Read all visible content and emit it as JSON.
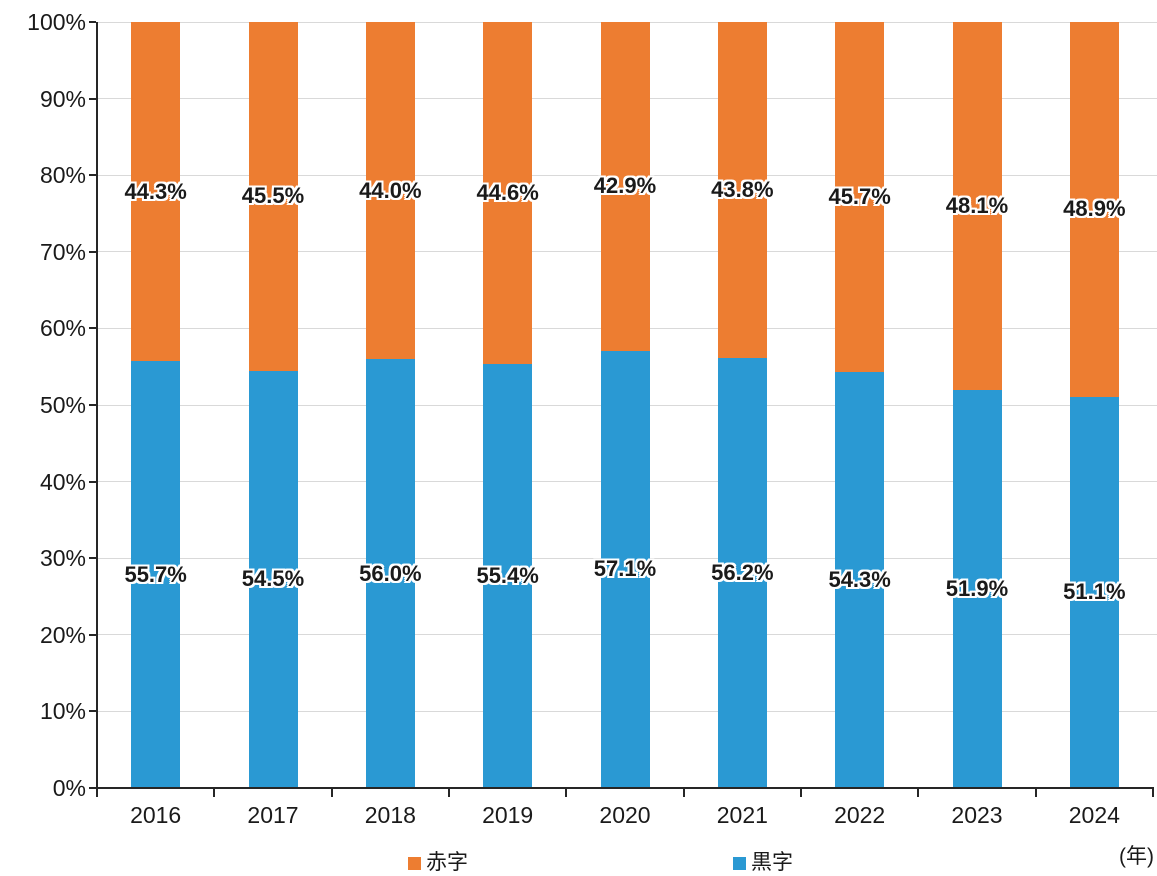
{
  "chart_data": {
    "type": "bar",
    "stacked": true,
    "stacked_100_percent": true,
    "title": "",
    "xlabel": "",
    "ylabel": "",
    "x_axis_unit": "(年)",
    "categories": [
      "2016",
      "2017",
      "2018",
      "2019",
      "2020",
      "2021",
      "2022",
      "2023",
      "2024"
    ],
    "series": [
      {
        "name": "黒字",
        "slug": "surplus",
        "color": "#2a99d3",
        "values": [
          55.7,
          54.5,
          56.0,
          55.4,
          57.1,
          56.2,
          54.3,
          51.9,
          51.1
        ],
        "labels": [
          "55.7%",
          "54.5%",
          "56.0%",
          "55.4%",
          "57.1%",
          "56.2%",
          "54.3%",
          "51.9%",
          "51.1%"
        ]
      },
      {
        "name": "赤字",
        "slug": "deficit",
        "color": "#ed7d31",
        "values": [
          44.3,
          45.5,
          44.0,
          44.6,
          42.9,
          43.8,
          45.7,
          48.1,
          48.9
        ],
        "labels": [
          "44.3%",
          "45.5%",
          "44.0%",
          "44.6%",
          "42.9%",
          "43.8%",
          "45.7%",
          "48.1%",
          "48.9%"
        ]
      }
    ],
    "y_axis": {
      "min": 0,
      "max": 100,
      "step": 10,
      "tick_labels": [
        "0%",
        "10%",
        "20%",
        "30%",
        "40%",
        "50%",
        "60%",
        "70%",
        "80%",
        "90%",
        "100%"
      ]
    },
    "grid": true,
    "legend": {
      "position": "bottom",
      "entries": [
        {
          "label": "赤字",
          "slug": "deficit",
          "color": "#ed7d31"
        },
        {
          "label": "黒字",
          "slug": "surplus",
          "color": "#2a99d3"
        }
      ]
    },
    "colors": {
      "surplus_blue": "#2a99d3",
      "deficit_orange": "#ed7d31",
      "gridline": "#d9d9d9",
      "axis": "#262626",
      "label_text": "#1a1a1a"
    }
  }
}
